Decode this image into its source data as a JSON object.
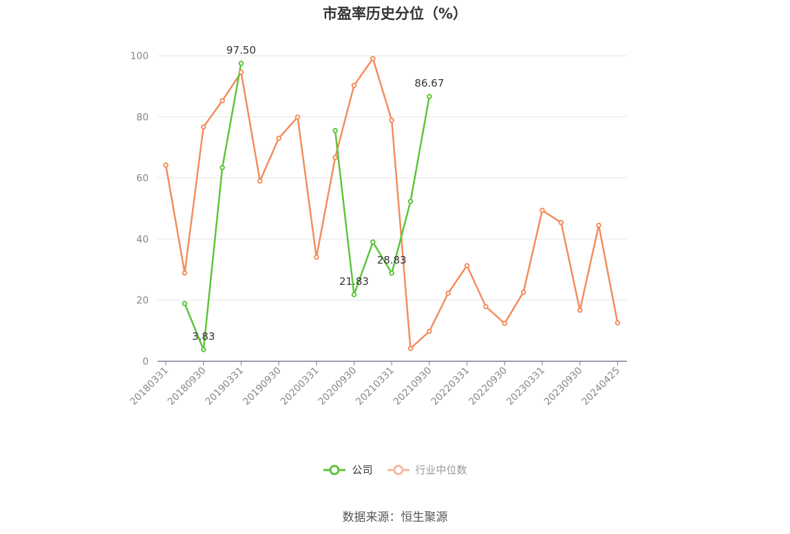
{
  "title": "市盈率历史分位（%）",
  "source": "数据来源：恒生聚源",
  "legend": {
    "company": "公司",
    "industry": "行业中位数"
  },
  "colors": {
    "company": "#5cc43a",
    "industry": "#f28c5d",
    "grid": "#e6e6e6",
    "axis": "#7b7b8e"
  },
  "chart_data": {
    "type": "line",
    "ylim": [
      0,
      100
    ],
    "yticks": [
      0,
      20,
      40,
      60,
      80,
      100
    ],
    "x_tick_labels": [
      "20180331",
      "20180930",
      "20190331",
      "20190930",
      "20200331",
      "20200930",
      "20210331",
      "20210930",
      "20220331",
      "20220930",
      "20230331",
      "20230930",
      "20240425"
    ],
    "x": [
      "20180331",
      "20180630",
      "20180930",
      "20181231",
      "20190331",
      "20190630",
      "20190930",
      "20191231",
      "20200331",
      "20200630",
      "20200930",
      "20201231",
      "20210331",
      "20210630",
      "20210930",
      "20211231",
      "20220331",
      "20220630",
      "20220930",
      "20221231",
      "20230331",
      "20230630",
      "20230930",
      "20231231",
      "20240425"
    ],
    "series": [
      {
        "name": "公司",
        "values": [
          null,
          18.9,
          3.83,
          63.4,
          97.5,
          null,
          null,
          null,
          null,
          75.5,
          21.83,
          39.0,
          28.83,
          52.3,
          86.67,
          null,
          null,
          null,
          null,
          null,
          null,
          null,
          null,
          null,
          null
        ],
        "labels": [
          {
            "index": 2,
            "text": "3.83"
          },
          {
            "index": 4,
            "text": "97.50"
          },
          {
            "index": 10,
            "text": "21.83"
          },
          {
            "index": 12,
            "text": "28.83"
          },
          {
            "index": 14,
            "text": "86.67"
          }
        ]
      },
      {
        "name": "行业中位数",
        "values": [
          64.2,
          28.9,
          76.7,
          85.3,
          94.6,
          59.0,
          73.0,
          79.9,
          34.1,
          66.7,
          90.3,
          99.1,
          78.9,
          4.2,
          9.8,
          22.3,
          31.3,
          17.9,
          12.4,
          22.6,
          49.4,
          45.4,
          16.7,
          44.5,
          12.6
        ]
      }
    ]
  }
}
